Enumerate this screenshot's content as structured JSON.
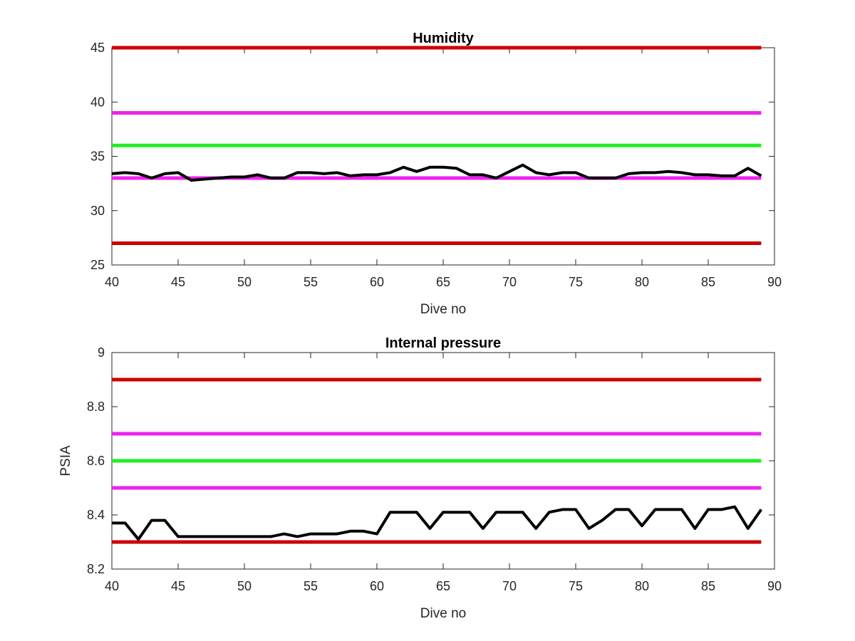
{
  "chart_data": [
    {
      "type": "line",
      "title": "Humidity",
      "xlabel": "Dive no",
      "ylabel": "",
      "xlim": [
        40,
        90
      ],
      "ylim": [
        25,
        45
      ],
      "xticks": [
        40,
        45,
        50,
        55,
        60,
        65,
        70,
        75,
        80,
        85,
        90
      ],
      "yticks": [
        25,
        30,
        35,
        40,
        45
      ],
      "grid": false,
      "thresholds": [
        {
          "value": 45,
          "color": "#cc0000"
        },
        {
          "value": 39,
          "color": "#ee22ee"
        },
        {
          "value": 36,
          "color": "#22ee22"
        },
        {
          "value": 33,
          "color": "#ee22ee"
        },
        {
          "value": 27,
          "color": "#cc0000"
        }
      ],
      "series": [
        {
          "color": "#000000",
          "x": [
            40,
            41,
            42,
            43,
            44,
            45,
            46,
            47,
            48,
            49,
            50,
            51,
            52,
            53,
            54,
            55,
            56,
            57,
            58,
            59,
            60,
            61,
            62,
            63,
            64,
            65,
            66,
            67,
            68,
            69,
            70,
            71,
            72,
            73,
            74,
            75,
            76,
            77,
            78,
            79,
            80,
            81,
            82,
            83,
            84,
            85,
            86,
            87,
            88,
            89
          ],
          "y": [
            33.4,
            33.5,
            33.4,
            33.0,
            33.4,
            33.5,
            32.8,
            32.9,
            33.0,
            33.1,
            33.1,
            33.3,
            33.0,
            33.0,
            33.5,
            33.5,
            33.4,
            33.5,
            33.2,
            33.3,
            33.3,
            33.5,
            34.0,
            33.6,
            34.0,
            34.0,
            33.9,
            33.3,
            33.3,
            33.0,
            33.6,
            34.2,
            33.5,
            33.3,
            33.5,
            33.5,
            33.0,
            33.0,
            33.0,
            33.4,
            33.5,
            33.5,
            33.6,
            33.5,
            33.3,
            33.3,
            33.2,
            33.2,
            33.9,
            33.2
          ]
        }
      ]
    },
    {
      "type": "line",
      "title": "Internal pressure",
      "xlabel": "Dive no",
      "ylabel": "PSIA",
      "xlim": [
        40,
        90
      ],
      "ylim": [
        8.2,
        9
      ],
      "xticks": [
        40,
        45,
        50,
        55,
        60,
        65,
        70,
        75,
        80,
        85,
        90
      ],
      "yticks": [
        8.2,
        8.4,
        8.6,
        8.8,
        9
      ],
      "ytick_labels": [
        "8.2",
        "8.4",
        "8.6",
        "8.8",
        "9"
      ],
      "grid": false,
      "thresholds": [
        {
          "value": 8.9,
          "color": "#cc0000"
        },
        {
          "value": 8.7,
          "color": "#ee22ee"
        },
        {
          "value": 8.6,
          "color": "#22ee22"
        },
        {
          "value": 8.5,
          "color": "#ee22ee"
        },
        {
          "value": 8.3,
          "color": "#cc0000"
        }
      ],
      "series": [
        {
          "color": "#000000",
          "x": [
            40,
            41,
            42,
            43,
            44,
            45,
            46,
            47,
            48,
            49,
            50,
            51,
            52,
            53,
            54,
            55,
            56,
            57,
            58,
            59,
            60,
            61,
            62,
            63,
            64,
            65,
            66,
            67,
            68,
            69,
            70,
            71,
            72,
            73,
            74,
            75,
            76,
            77,
            78,
            79,
            80,
            81,
            82,
            83,
            84,
            85,
            86,
            87,
            88,
            89
          ],
          "y": [
            8.37,
            8.37,
            8.31,
            8.38,
            8.38,
            8.32,
            8.32,
            8.32,
            8.32,
            8.32,
            8.32,
            8.32,
            8.32,
            8.33,
            8.32,
            8.33,
            8.33,
            8.33,
            8.34,
            8.34,
            8.33,
            8.41,
            8.41,
            8.41,
            8.35,
            8.41,
            8.41,
            8.41,
            8.35,
            8.41,
            8.41,
            8.41,
            8.35,
            8.41,
            8.42,
            8.42,
            8.35,
            8.38,
            8.42,
            8.42,
            8.36,
            8.42,
            8.42,
            8.42,
            8.35,
            8.42,
            8.42,
            8.43,
            8.35,
            8.42
          ]
        }
      ]
    }
  ]
}
